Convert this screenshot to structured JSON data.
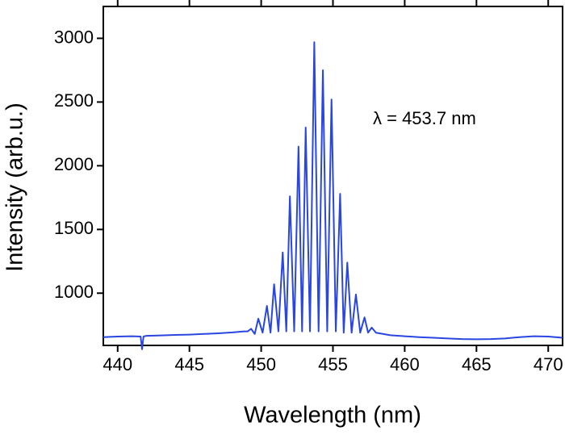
{
  "chart_data": {
    "type": "line",
    "xlabel": "Wavelength (nm)",
    "ylabel": "Intensity (arb.u.)",
    "annotation": "λ = 453.7 nm",
    "x": [
      439,
      440,
      441,
      441.6,
      441.7,
      441.8,
      442,
      443,
      444,
      445,
      446,
      447,
      448,
      448.8,
      449.05,
      449.3,
      449.55,
      449.8,
      450.1,
      450.4,
      450.65,
      450.9,
      451.2,
      451.5,
      451.75,
      452.0,
      452.3,
      452.6,
      452.85,
      453.1,
      453.4,
      453.7,
      454.0,
      454.3,
      454.6,
      454.9,
      455.2,
      455.5,
      455.75,
      456.0,
      456.3,
      456.6,
      456.9,
      457.2,
      457.45,
      457.7,
      458,
      459,
      460,
      461,
      462,
      463,
      464,
      465,
      466,
      467,
      468,
      469,
      470,
      471
    ],
    "series": [
      {
        "color": "#2a46e0",
        "values": [
          655,
          660,
          662,
          660,
          560,
          660,
          665,
          668,
          672,
          675,
          680,
          685,
          692,
          700,
          700,
          720,
          680,
          800,
          690,
          900,
          690,
          1070,
          700,
          1320,
          700,
          1760,
          700,
          2150,
          700,
          2300,
          700,
          2970,
          700,
          2750,
          700,
          2520,
          700,
          1780,
          690,
          1240,
          690,
          990,
          690,
          810,
          690,
          730,
          690,
          670,
          662,
          655,
          650,
          645,
          640,
          638,
          640,
          645,
          655,
          662,
          660,
          650
        ]
      }
    ],
    "xlim": [
      439,
      471
    ],
    "ylim": [
      590,
      3250
    ],
    "xticks": [
      440,
      445,
      450,
      455,
      460,
      465,
      470
    ],
    "yticks": [
      1000,
      1500,
      2000,
      2500,
      3000
    ]
  }
}
